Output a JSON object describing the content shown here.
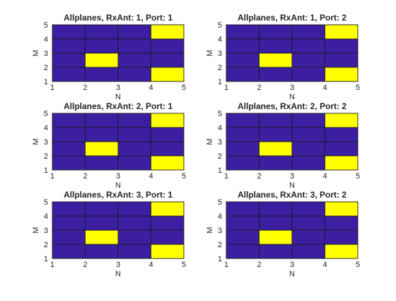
{
  "colors": {
    "low": "#3b1fa0",
    "high": "#ffff00",
    "grid": "#1a1a1a"
  },
  "chart_data": [
    {
      "type": "heatmap",
      "title": "Allplanes, RxAnt: 1, Port: 1",
      "xlabel": "N",
      "ylabel": "M",
      "xlim": [
        1,
        5
      ],
      "ylim": [
        1,
        5
      ],
      "xticks": [
        "1",
        "2",
        "3",
        "4",
        "5"
      ],
      "yticks": [
        "1",
        "2",
        "3",
        "4",
        "5"
      ],
      "cells": [
        [
          0,
          0,
          0,
          1
        ],
        [
          0,
          1,
          0,
          0
        ],
        [
          0,
          0,
          0,
          0
        ],
        [
          0,
          0,
          0,
          1
        ]
      ]
    },
    {
      "type": "heatmap",
      "title": "Allplanes, RxAnt: 1, Port: 2",
      "xlabel": "N",
      "ylabel": "M",
      "xlim": [
        1,
        5
      ],
      "ylim": [
        1,
        5
      ],
      "xticks": [
        "1",
        "2",
        "3",
        "4",
        "5"
      ],
      "yticks": [
        "1",
        "2",
        "3",
        "4",
        "5"
      ],
      "cells": [
        [
          0,
          0,
          0,
          1
        ],
        [
          0,
          1,
          0,
          0
        ],
        [
          0,
          0,
          0,
          0
        ],
        [
          0,
          0,
          0,
          1
        ]
      ]
    },
    {
      "type": "heatmap",
      "title": "Allplanes, RxAnt: 2, Port: 1",
      "xlabel": "N",
      "ylabel": "M",
      "xlim": [
        1,
        5
      ],
      "ylim": [
        1,
        5
      ],
      "xticks": [
        "1",
        "2",
        "3",
        "4",
        "5"
      ],
      "yticks": [
        "1",
        "2",
        "3",
        "4",
        "5"
      ],
      "cells": [
        [
          0,
          0,
          0,
          1
        ],
        [
          0,
          1,
          0,
          0
        ],
        [
          0,
          0,
          0,
          0
        ],
        [
          0,
          0,
          0,
          1
        ]
      ]
    },
    {
      "type": "heatmap",
      "title": "Allplanes, RxAnt: 2, Port: 2",
      "xlabel": "N",
      "ylabel": "M",
      "xlim": [
        1,
        5
      ],
      "ylim": [
        1,
        5
      ],
      "xticks": [
        "1",
        "2",
        "3",
        "4",
        "5"
      ],
      "yticks": [
        "1",
        "2",
        "3",
        "4",
        "5"
      ],
      "cells": [
        [
          0,
          0,
          0,
          1
        ],
        [
          0,
          1,
          0,
          0
        ],
        [
          0,
          0,
          0,
          0
        ],
        [
          0,
          0,
          0,
          1
        ]
      ]
    },
    {
      "type": "heatmap",
      "title": "Allplanes, RxAnt: 3, Port: 1",
      "xlabel": "N",
      "ylabel": "M",
      "xlim": [
        1,
        5
      ],
      "ylim": [
        1,
        5
      ],
      "xticks": [
        "1",
        "2",
        "3",
        "4",
        "5"
      ],
      "yticks": [
        "1",
        "2",
        "3",
        "4",
        "5"
      ],
      "cells": [
        [
          0,
          0,
          0,
          1
        ],
        [
          0,
          1,
          0,
          0
        ],
        [
          0,
          0,
          0,
          0
        ],
        [
          0,
          0,
          0,
          1
        ]
      ]
    },
    {
      "type": "heatmap",
      "title": "Allplanes, RxAnt: 3, Port: 2",
      "xlabel": "N",
      "ylabel": "M",
      "xlim": [
        1,
        5
      ],
      "ylim": [
        1,
        5
      ],
      "xticks": [
        "1",
        "2",
        "3",
        "4",
        "5"
      ],
      "yticks": [
        "1",
        "2",
        "3",
        "4",
        "5"
      ],
      "cells": [
        [
          0,
          0,
          0,
          1
        ],
        [
          0,
          1,
          0,
          0
        ],
        [
          0,
          0,
          0,
          0
        ],
        [
          0,
          0,
          0,
          1
        ]
      ]
    }
  ]
}
